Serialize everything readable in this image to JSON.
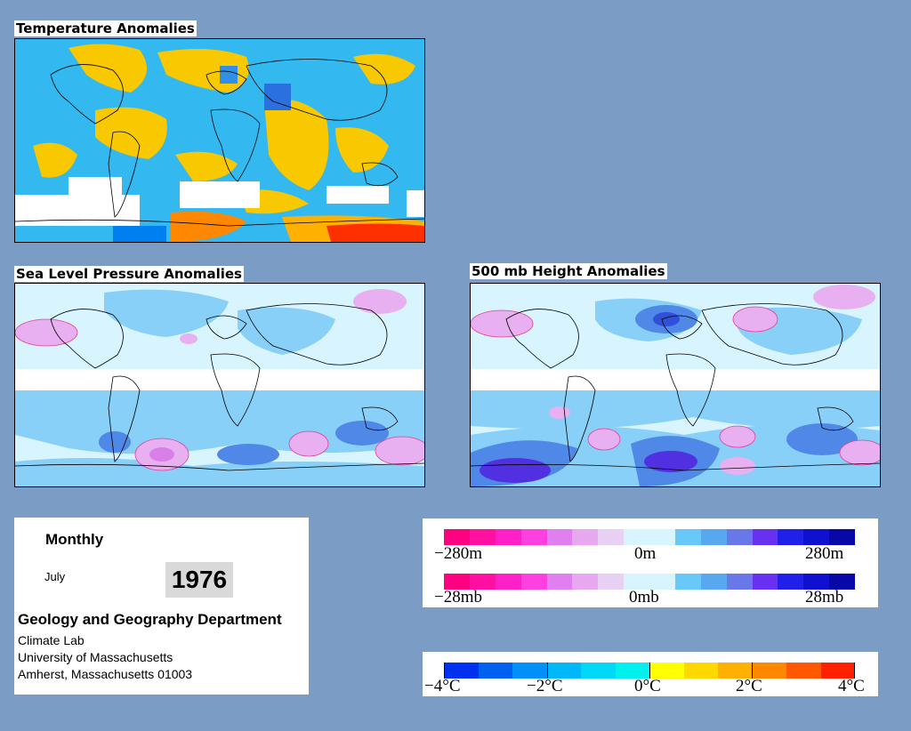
{
  "panels": {
    "temperature": {
      "title": "Temperature Anomalies"
    },
    "slp": {
      "title": "Sea Level Pressure Anomalies"
    },
    "height500": {
      "title": "500 mb Height Anomalies"
    }
  },
  "info": {
    "period": "Monthly",
    "month": "July",
    "year": "1976",
    "department": "Geology and Geography Department",
    "lab": "Climate Lab",
    "university": "University of Massachusetts",
    "address": "Amherst, Massachusetts 01003"
  },
  "legends": {
    "height": {
      "labels": [
        "−280m",
        "0m",
        "280m"
      ],
      "colors": [
        "#ff0080",
        "#ff10a0",
        "#ff20c8",
        "#ff40e0",
        "#e080f0",
        "#e8a8f0",
        "#e8d0f4",
        "#d8f4ff",
        "#d8f4ff",
        "#68c8f8",
        "#58a8f0",
        "#6878e8",
        "#6830f0",
        "#2020e8",
        "#1010d0",
        "#0808a8"
      ]
    },
    "pressure": {
      "labels": [
        "−28mb",
        "0mb",
        "28mb"
      ],
      "colors": [
        "#ff0080",
        "#ff10a0",
        "#ff20c8",
        "#ff40e0",
        "#e080f0",
        "#e8a8f0",
        "#e8d0f4",
        "#d8f4ff",
        "#d8f4ff",
        "#68c8f8",
        "#58a8f0",
        "#6878e8",
        "#6830f0",
        "#2020e8",
        "#1010d0",
        "#0808a8"
      ]
    },
    "temperature": {
      "labels": [
        "−4°C",
        "−2°C",
        "0°C",
        "2°C",
        "4°C"
      ],
      "colors": [
        "#0030f0",
        "#0060f0",
        "#0090f8",
        "#00b8f8",
        "#00d8f8",
        "#00f0f0",
        "#ffff00",
        "#ffd800",
        "#ffb000",
        "#ff8800",
        "#ff5800",
        "#ff2000"
      ]
    }
  },
  "colors": {
    "background": "#7b9cc4",
    "temp_cool": "#33b8f0",
    "temp_warm": "#f8c800",
    "temp_hot": "#ff3000",
    "anom_neutral": "#d8f4ff",
    "anom_light_blue": "#88d0f8",
    "anom_blue": "#5088e8",
    "anom_purple": "#5030e0",
    "anom_pink": "#e8b0f0",
    "contour_pos": "#e0409a"
  }
}
